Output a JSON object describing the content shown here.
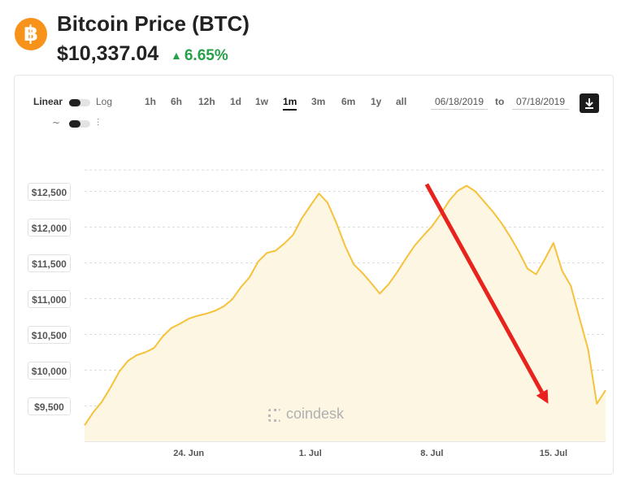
{
  "header": {
    "logo_glyph": "฿",
    "title": "Bitcoin Price (BTC)",
    "price": "$10,337.04",
    "change": "6.65%",
    "change_color": "#26a14a",
    "brand_color": "#f7931a"
  },
  "controls": {
    "scale_left": "Linear",
    "scale_right": "Log",
    "ranges": [
      "1h",
      "6h",
      "12h",
      "1d",
      "1w",
      "1m",
      "3m",
      "6m",
      "1y",
      "all"
    ],
    "active_range": "1m",
    "date_from": "06/18/2019",
    "date_to_label": "to",
    "date_to": "07/18/2019",
    "chart_type_icons": [
      "line-chart-icon",
      "candlestick-icon"
    ],
    "download_icon": "download-icon"
  },
  "watermark": "coindesk",
  "chart_data": {
    "type": "area",
    "title": "",
    "xlabel": "",
    "ylabel": "",
    "ylim": [
      9200,
      12800
    ],
    "y_ticks": [
      9500,
      10000,
      10500,
      11000,
      11500,
      12000,
      12500
    ],
    "y_tick_labels": [
      "$9,500",
      "$10,000",
      "$10,500",
      "$11,000",
      "$11,500",
      "$12,000",
      "$12,500"
    ],
    "x_tick_labels": [
      {
        "day": 6,
        "label": "24. Jun"
      },
      {
        "day": 13,
        "label": "1. Jul"
      },
      {
        "day": 20,
        "label": "8. Jul"
      },
      {
        "day": 27,
        "label": "15. Jul"
      }
    ],
    "x_start": "06/18/2019",
    "line_color": "#f6c23b",
    "fill_color": "#fdf6e3",
    "grid": true,
    "series": [
      {
        "x": [
          0,
          1,
          2,
          3,
          4,
          5,
          6,
          7,
          8,
          9,
          10,
          11,
          12,
          13,
          14,
          15,
          16,
          17,
          18,
          19,
          20,
          21,
          22,
          23,
          24,
          25,
          26,
          27,
          28,
          29,
          30,
          31,
          32,
          33,
          34,
          35,
          36,
          37,
          38,
          39,
          40,
          41,
          42,
          43,
          44,
          45,
          46,
          47,
          48,
          49,
          50,
          51,
          52,
          53,
          54,
          55,
          56,
          57,
          58,
          59,
          60
        ],
        "values": [
          9230,
          9410,
          9560,
          9760,
          9980,
          10130,
          10210,
          10250,
          10310,
          10470,
          10590,
          10650,
          10720,
          10760,
          10790,
          10830,
          10890,
          10990,
          11160,
          11300,
          11520,
          11640,
          11670,
          11770,
          11890,
          12120,
          12300,
          12470,
          12340,
          12060,
          11740,
          11480,
          11360,
          11220,
          11070,
          11200,
          11370,
          11560,
          11740,
          11880,
          12010,
          12180,
          12370,
          12510,
          12580,
          12500,
          12360,
          12220,
          12060,
          11870,
          11660,
          11420,
          11340,
          11550,
          11780,
          11390,
          11180,
          10730,
          10290,
          9530,
          9720
        ]
      }
    ],
    "annotation": {
      "type": "arrow",
      "from": {
        "day": 19.7,
        "value": 12600
      },
      "to": {
        "day": 26.7,
        "value": 9530
      },
      "color": "#e8231d"
    }
  }
}
